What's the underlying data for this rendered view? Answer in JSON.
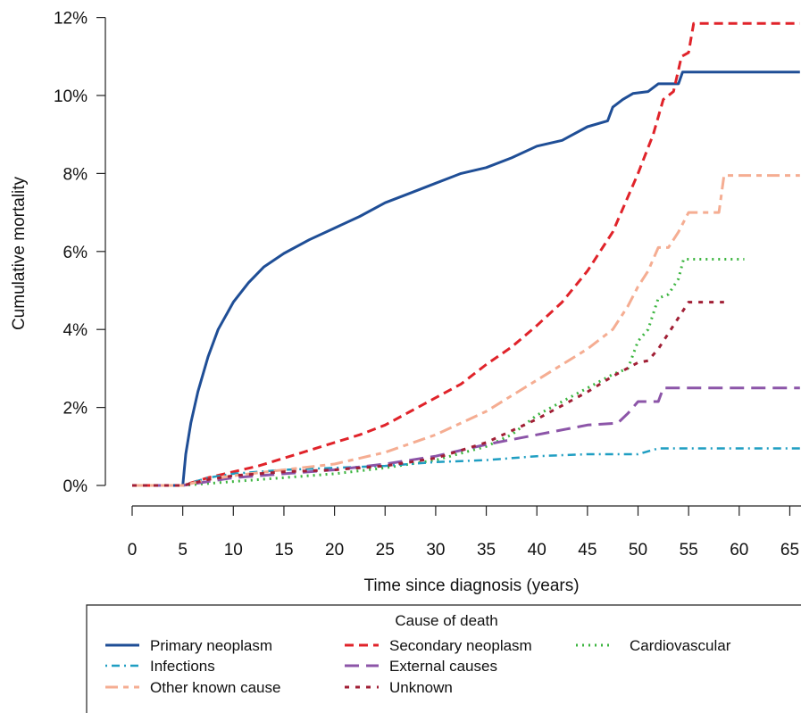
{
  "chart_data": {
    "type": "line",
    "xlabel": "Time since diagnosis (years)",
    "ylabel": "Cumulative mortality",
    "xlim": [
      0,
      66
    ],
    "ylim": [
      0,
      12
    ],
    "x_ticks": [
      0,
      5,
      10,
      15,
      20,
      25,
      30,
      35,
      40,
      45,
      50,
      55,
      60,
      65
    ],
    "x_tick_labels": [
      "0",
      "5",
      "10",
      "15",
      "20",
      "25",
      "30",
      "35",
      "40",
      "45",
      "50",
      "55",
      "60",
      "65"
    ],
    "y_ticks": [
      0,
      2,
      4,
      6,
      8,
      10,
      12
    ],
    "y_tick_labels": [
      "0%",
      "2%",
      "4%",
      "6%",
      "8%",
      "10%",
      "12%"
    ],
    "legend": {
      "title": "Cause of death",
      "placement": "bottom"
    },
    "series": [
      {
        "name": "Primary neoplasm",
        "color": "#1f4e96",
        "dash": "solid",
        "width": 3,
        "points": [
          [
            0,
            0
          ],
          [
            5,
            0
          ],
          [
            5.3,
            0.8
          ],
          [
            5.8,
            1.6
          ],
          [
            6.5,
            2.4
          ],
          [
            7.5,
            3.3
          ],
          [
            8.5,
            4.0
          ],
          [
            10,
            4.7
          ],
          [
            11.5,
            5.2
          ],
          [
            13,
            5.6
          ],
          [
            15,
            5.95
          ],
          [
            17.5,
            6.3
          ],
          [
            20,
            6.6
          ],
          [
            22.5,
            6.9
          ],
          [
            25,
            7.25
          ],
          [
            27.5,
            7.5
          ],
          [
            30,
            7.75
          ],
          [
            32.5,
            8.0
          ],
          [
            35,
            8.15
          ],
          [
            37.5,
            8.4
          ],
          [
            40,
            8.7
          ],
          [
            42.5,
            8.85
          ],
          [
            45,
            9.2
          ],
          [
            47,
            9.35
          ],
          [
            47.5,
            9.7
          ],
          [
            48.5,
            9.9
          ],
          [
            49.5,
            10.05
          ],
          [
            51,
            10.1
          ],
          [
            52,
            10.3
          ],
          [
            54,
            10.3
          ],
          [
            54.4,
            10.6
          ],
          [
            66,
            10.6
          ]
        ]
      },
      {
        "name": "Secondary neoplasm",
        "color": "#e0232a",
        "dash": "dashed",
        "width": 3,
        "points": [
          [
            0,
            0
          ],
          [
            5,
            0
          ],
          [
            7.5,
            0.2
          ],
          [
            10,
            0.35
          ],
          [
            12.5,
            0.5
          ],
          [
            15,
            0.7
          ],
          [
            17.5,
            0.9
          ],
          [
            20,
            1.1
          ],
          [
            22.5,
            1.3
          ],
          [
            25,
            1.55
          ],
          [
            27.5,
            1.9
          ],
          [
            30,
            2.25
          ],
          [
            32.5,
            2.6
          ],
          [
            35,
            3.1
          ],
          [
            37.5,
            3.55
          ],
          [
            40,
            4.1
          ],
          [
            42.5,
            4.7
          ],
          [
            45,
            5.5
          ],
          [
            47.5,
            6.5
          ],
          [
            50,
            8.0
          ],
          [
            51.5,
            9.0
          ],
          [
            52.5,
            9.9
          ],
          [
            53.5,
            10.1
          ],
          [
            54.3,
            11.0
          ],
          [
            55,
            11.1
          ],
          [
            55.5,
            11.85
          ],
          [
            66,
            11.85
          ]
        ]
      },
      {
        "name": "Cardiovascular",
        "color": "#3cb540",
        "dash": "dotted",
        "width": 3,
        "points": [
          [
            0,
            0
          ],
          [
            5,
            0
          ],
          [
            7.5,
            0.05
          ],
          [
            10,
            0.1
          ],
          [
            15,
            0.2
          ],
          [
            20,
            0.3
          ],
          [
            25,
            0.45
          ],
          [
            30,
            0.65
          ],
          [
            35,
            1.0
          ],
          [
            37.5,
            1.3
          ],
          [
            40,
            1.8
          ],
          [
            42.5,
            2.15
          ],
          [
            45,
            2.5
          ],
          [
            47.5,
            2.85
          ],
          [
            49,
            3.0
          ],
          [
            50,
            3.7
          ],
          [
            51,
            4.0
          ],
          [
            52,
            4.8
          ],
          [
            53,
            4.9
          ],
          [
            54,
            5.3
          ],
          [
            54.5,
            5.8
          ],
          [
            60.5,
            5.8
          ]
        ]
      },
      {
        "name": "Infections",
        "color": "#1f9ec2",
        "dash": "dotdash",
        "width": 2.5,
        "points": [
          [
            0,
            0
          ],
          [
            5,
            0
          ],
          [
            7.5,
            0.2
          ],
          [
            10,
            0.3
          ],
          [
            15,
            0.4
          ],
          [
            20,
            0.45
          ],
          [
            25,
            0.5
          ],
          [
            30,
            0.6
          ],
          [
            35,
            0.65
          ],
          [
            40,
            0.75
          ],
          [
            45,
            0.8
          ],
          [
            50,
            0.8
          ],
          [
            52,
            0.95
          ],
          [
            66,
            0.95
          ]
        ]
      },
      {
        "name": "External causes",
        "color": "#8c55a8",
        "dash": "longdash",
        "width": 3,
        "points": [
          [
            0,
            0
          ],
          [
            5,
            0
          ],
          [
            7.5,
            0.1
          ],
          [
            10,
            0.2
          ],
          [
            15,
            0.3
          ],
          [
            20,
            0.4
          ],
          [
            25,
            0.55
          ],
          [
            30,
            0.75
          ],
          [
            35,
            1.05
          ],
          [
            40,
            1.3
          ],
          [
            45,
            1.55
          ],
          [
            48,
            1.6
          ],
          [
            49,
            1.85
          ],
          [
            50,
            2.15
          ],
          [
            52,
            2.15
          ],
          [
            52.5,
            2.5
          ],
          [
            66,
            2.5
          ]
        ]
      },
      {
        "name": "Other known cause",
        "color": "#f5ad92",
        "dash": "twodash",
        "width": 3,
        "points": [
          [
            0,
            0
          ],
          [
            5,
            0
          ],
          [
            7.5,
            0.15
          ],
          [
            10,
            0.25
          ],
          [
            15,
            0.4
          ],
          [
            20,
            0.55
          ],
          [
            25,
            0.85
          ],
          [
            30,
            1.3
          ],
          [
            35,
            1.9
          ],
          [
            40,
            2.7
          ],
          [
            45,
            3.5
          ],
          [
            47.5,
            4.0
          ],
          [
            49,
            4.6
          ],
          [
            50,
            5.1
          ],
          [
            51,
            5.5
          ],
          [
            52,
            6.1
          ],
          [
            53,
            6.1
          ],
          [
            54,
            6.5
          ],
          [
            55,
            7.0
          ],
          [
            58,
            7.0
          ],
          [
            58.5,
            7.95
          ],
          [
            66,
            7.95
          ]
        ]
      },
      {
        "name": "Unknown",
        "color": "#a11f35",
        "dash": "shortdash",
        "width": 3,
        "points": [
          [
            0,
            0
          ],
          [
            5,
            0
          ],
          [
            7.5,
            0.15
          ],
          [
            10,
            0.25
          ],
          [
            15,
            0.35
          ],
          [
            20,
            0.4
          ],
          [
            25,
            0.5
          ],
          [
            30,
            0.7
          ],
          [
            35,
            1.1
          ],
          [
            40,
            1.7
          ],
          [
            45,
            2.4
          ],
          [
            47.5,
            2.8
          ],
          [
            50,
            3.15
          ],
          [
            51,
            3.2
          ],
          [
            52,
            3.5
          ],
          [
            53,
            3.9
          ],
          [
            54,
            4.3
          ],
          [
            55,
            4.7
          ],
          [
            58.5,
            4.7
          ]
        ]
      }
    ]
  },
  "legend_rows": [
    [
      "Primary neoplasm",
      "Secondary neoplasm",
      "Cardiovascular"
    ],
    [
      "Infections",
      "External causes"
    ],
    [
      "Other known cause",
      "Unknown"
    ]
  ]
}
